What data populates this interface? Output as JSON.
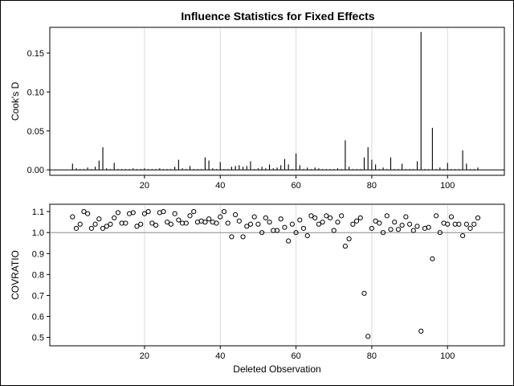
{
  "chart_data": [
    {
      "type": "bar",
      "title": "Influence Statistics for Fixed Effects",
      "xlabel": "",
      "ylabel": "Cook's D",
      "xlim": [
        -5,
        115
      ],
      "ylim": [
        -0.007,
        0.183
      ],
      "xticks": [
        20,
        40,
        60,
        80,
        100
      ],
      "yticks": [
        0.0,
        0.05,
        0.1,
        0.15
      ],
      "ytick_labels": [
        "0.00",
        "0.05",
        "0.10",
        "0.15"
      ],
      "reference_line": 0,
      "grid": "vertical",
      "x": [
        1,
        2,
        3,
        4,
        5,
        6,
        7,
        8,
        9,
        10,
        11,
        12,
        13,
        14,
        15,
        16,
        17,
        18,
        19,
        20,
        21,
        22,
        23,
        24,
        25,
        26,
        27,
        28,
        29,
        30,
        31,
        32,
        33,
        34,
        35,
        36,
        37,
        38,
        39,
        40,
        41,
        42,
        43,
        44,
        45,
        46,
        47,
        48,
        49,
        50,
        51,
        52,
        53,
        54,
        55,
        56,
        57,
        58,
        59,
        60,
        61,
        62,
        63,
        64,
        65,
        66,
        67,
        68,
        69,
        70,
        71,
        72,
        73,
        74,
        75,
        76,
        77,
        78,
        79,
        80,
        81,
        82,
        83,
        84,
        85,
        86,
        87,
        88,
        89,
        90,
        91,
        92,
        93,
        94,
        95,
        96,
        97,
        98,
        99,
        100,
        101,
        102,
        103,
        104,
        105,
        106,
        107,
        108
      ],
      "values": [
        0.008,
        0.002,
        0.001,
        0.001,
        0.003,
        0.001,
        0.004,
        0.012,
        0.029,
        0.002,
        0.001,
        0.009,
        0.001,
        0.001,
        0.001,
        0.001,
        0.002,
        0.001,
        0.001,
        0.002,
        0.001,
        0.001,
        0.001,
        0.002,
        0.001,
        0.001,
        0.001,
        0.004,
        0.013,
        0.002,
        0.001,
        0.005,
        0.001,
        0.001,
        0.001,
        0.016,
        0.012,
        0.002,
        0.001,
        0.01,
        0.001,
        0.001,
        0.004,
        0.005,
        0.006,
        0.004,
        0.005,
        0.011,
        0.001,
        0.002,
        0.004,
        0.002,
        0.007,
        0.002,
        0.003,
        0.006,
        0.014,
        0.007,
        0.001,
        0.021,
        0.006,
        0.001,
        0.003,
        0.001,
        0.003,
        0.002,
        0.001,
        0.001,
        0.001,
        0.001,
        0.002,
        0.001,
        0.038,
        0.004,
        0.001,
        0.001,
        0.001,
        0.016,
        0.029,
        0.013,
        0.007,
        0.001,
        0.003,
        0.001,
        0.016,
        0.001,
        0.001,
        0.008,
        0.001,
        0.001,
        0.001,
        0.011,
        0.177,
        0.001,
        0.001,
        0.054,
        0.001,
        0.003,
        0.001,
        0.009,
        0.001,
        0.001,
        0.001,
        0.025,
        0.008,
        0.001,
        0.001,
        0.003
      ]
    },
    {
      "type": "scatter",
      "title": "",
      "xlabel": "Deleted Observation",
      "ylabel": "COVRATIO",
      "xlim": [
        -5,
        115
      ],
      "ylim": [
        0.46,
        1.135
      ],
      "xticks": [
        20,
        40,
        60,
        80,
        100
      ],
      "yticks": [
        0.5,
        0.6,
        0.7,
        0.8,
        0.9,
        1.0,
        1.1
      ],
      "ytick_labels": [
        "0.5",
        "0.6",
        "0.7",
        "0.8",
        "0.9",
        "1.0",
        "1.1"
      ],
      "reference_line": 1.0,
      "grid": "vertical",
      "x": [
        1,
        2,
        3,
        4,
        5,
        6,
        7,
        8,
        9,
        10,
        11,
        12,
        13,
        14,
        15,
        16,
        17,
        18,
        19,
        20,
        21,
        22,
        23,
        24,
        25,
        26,
        27,
        28,
        29,
        30,
        31,
        32,
        33,
        34,
        35,
        36,
        37,
        38,
        39,
        40,
        41,
        42,
        43,
        44,
        45,
        46,
        47,
        48,
        49,
        50,
        51,
        52,
        53,
        54,
        55,
        56,
        57,
        58,
        59,
        60,
        61,
        62,
        63,
        64,
        65,
        66,
        67,
        68,
        69,
        70,
        71,
        72,
        73,
        74,
        75,
        76,
        77,
        78,
        79,
        80,
        81,
        82,
        83,
        84,
        85,
        86,
        87,
        88,
        89,
        90,
        91,
        92,
        93,
        94,
        95,
        96,
        97,
        98,
        99,
        100,
        101,
        102,
        103,
        104,
        105,
        106,
        107,
        108
      ],
      "values": [
        1.075,
        1.02,
        1.04,
        1.1,
        1.09,
        1.02,
        1.04,
        1.065,
        1.02,
        1.03,
        1.04,
        1.07,
        1.095,
        1.045,
        1.045,
        1.09,
        1.095,
        1.03,
        1.04,
        1.09,
        1.1,
        1.045,
        1.035,
        1.095,
        1.1,
        1.05,
        1.04,
        1.09,
        1.06,
        1.045,
        1.045,
        1.08,
        1.1,
        1.05,
        1.055,
        1.05,
        1.065,
        1.05,
        1.045,
        1.075,
        1.1,
        1.045,
        0.98,
        1.085,
        1.055,
        0.98,
        1.03,
        1.04,
        1.075,
        1.04,
        1.0,
        1.07,
        1.05,
        1.01,
        1.01,
        1.065,
        1.025,
        0.96,
        1.04,
        1.0,
        1.06,
        1.02,
        0.985,
        1.08,
        1.07,
        1.04,
        1.05,
        1.08,
        1.07,
        1.01,
        1.05,
        1.08,
        0.935,
        0.97,
        1.04,
        1.055,
        1.07,
        0.71,
        0.505,
        1.02,
        1.055,
        1.045,
        1.0,
        1.08,
        1.015,
        1.05,
        1.015,
        1.035,
        1.075,
        1.04,
        1.01,
        1.03,
        0.53,
        1.02,
        1.025,
        0.875,
        1.08,
        1.0,
        1.045,
        1.04,
        1.075,
        1.04,
        1.04,
        0.985,
        1.04,
        1.02,
        1.04,
        1.07
      ]
    }
  ]
}
